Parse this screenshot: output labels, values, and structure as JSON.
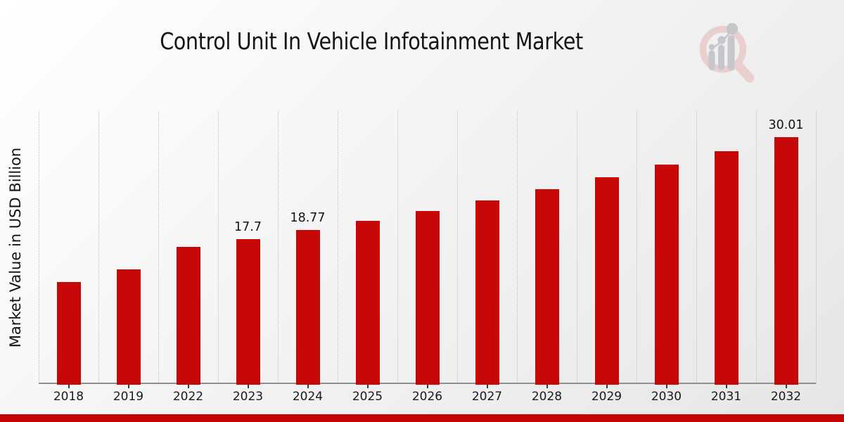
{
  "page": {
    "title": "Control Unit In Vehicle Infotainment Market",
    "banner_color": "#c40505"
  },
  "chart_data": {
    "type": "bar",
    "title": "Control Unit In Vehicle Infotainment Market",
    "xlabel": "",
    "ylabel": "Market Value in USD Billion",
    "categories": [
      "2018",
      "2019",
      "2022",
      "2023",
      "2024",
      "2025",
      "2026",
      "2027",
      "2028",
      "2029",
      "2030",
      "2031",
      "2032"
    ],
    "values": [
      12.5,
      14.0,
      16.7,
      17.7,
      18.77,
      19.9,
      21.1,
      22.4,
      23.7,
      25.15,
      26.7,
      28.35,
      30.01
    ],
    "bar_labels": [
      "",
      "",
      "",
      "17.7",
      "18.77",
      "",
      "",
      "",
      "",
      "",
      "",
      "",
      "30.01"
    ],
    "bar_color": "#c60808",
    "ylim": [
      0,
      33.2
    ],
    "grid": "vertical-dotted",
    "legend": "none",
    "axis_color": "#8f8f8f",
    "tick_color": "#3a3a3a",
    "gridline_color": "#bfbfbf"
  },
  "watermark": {
    "name": "market-research-future-logo",
    "ring_color": "#eacfcf",
    "glyph_color": "#c7c7cb"
  }
}
